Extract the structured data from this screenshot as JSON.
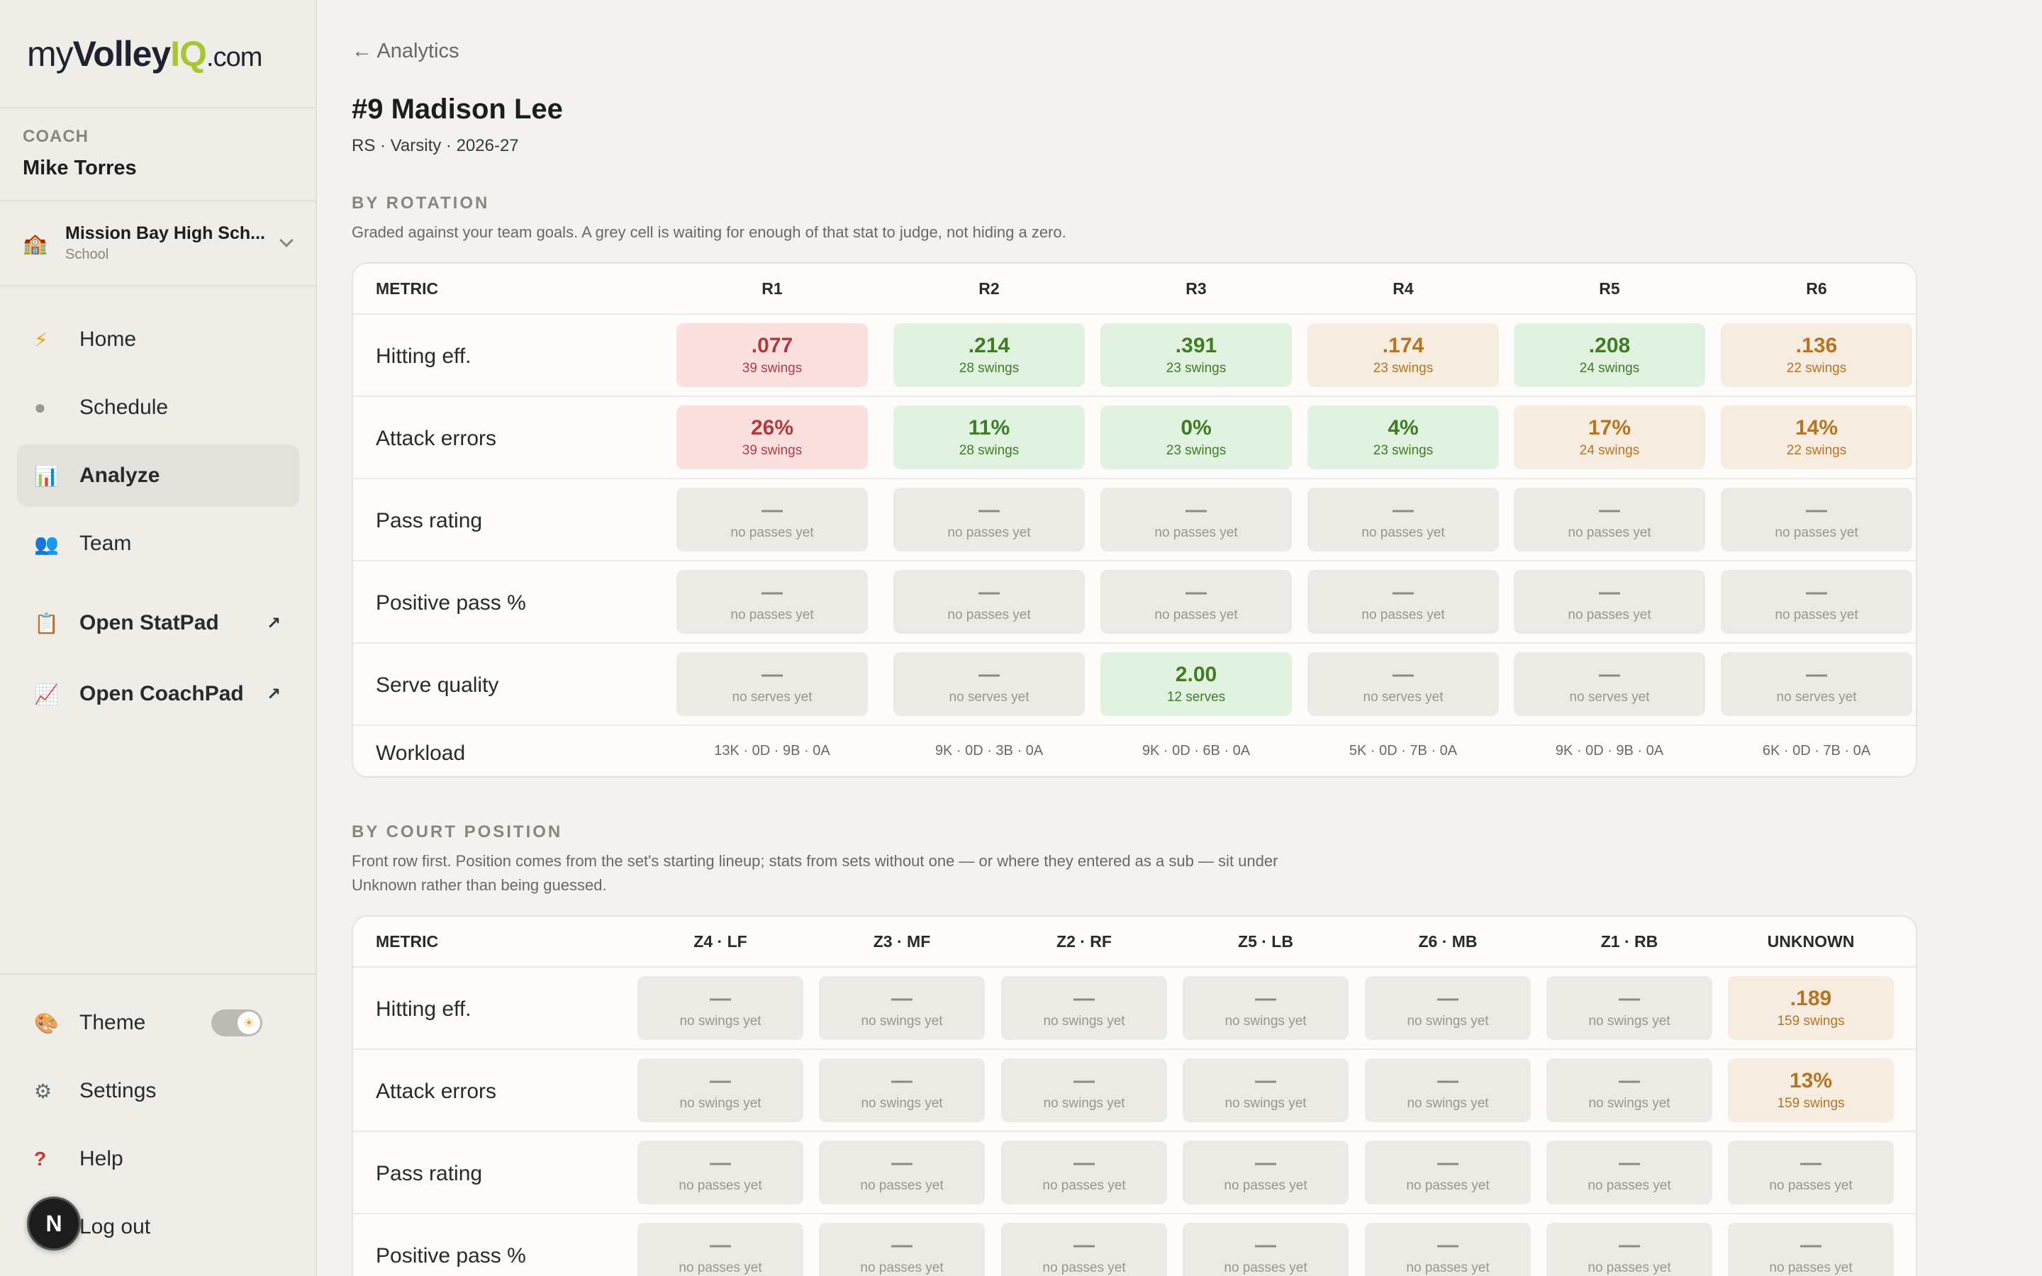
{
  "brand": {
    "prefix": "my",
    "bold": "Volley",
    "iq": "IQ",
    "suffix": ".com"
  },
  "coach": {
    "role": "COACH",
    "name": "Mike Torres"
  },
  "school": {
    "name": "Mission Bay High Sch...",
    "type": "School",
    "icon": "school-building-icon"
  },
  "nav": {
    "home": "Home",
    "schedule": "Schedule",
    "analyze": "Analyze",
    "team": "Team",
    "statpad": "Open StatPad",
    "coachpad": "Open CoachPad",
    "theme": "Theme",
    "settings": "Settings",
    "help": "Help",
    "logout": "Log out",
    "external_arrow": "↗"
  },
  "avatar": "N",
  "back": "← Analytics",
  "player": {
    "name": "#9 Madison Lee",
    "sub": "RS · Varsity · 2026-27"
  },
  "rotation": {
    "title": "BY ROTATION",
    "desc": "Graded against your team goals. A grey cell is waiting for enough of that stat to judge, not hiding a zero.",
    "metric_header": "METRIC",
    "columns": [
      "R1",
      "R2",
      "R3",
      "R4",
      "R5",
      "R6"
    ],
    "rows": [
      {
        "label": "Hitting eff.",
        "cells": [
          {
            "v": ".077",
            "s": "39 swings",
            "c": "red"
          },
          {
            "v": ".214",
            "s": "28 swings",
            "c": "green"
          },
          {
            "v": ".391",
            "s": "23 swings",
            "c": "green"
          },
          {
            "v": ".174",
            "s": "23 swings",
            "c": "amber"
          },
          {
            "v": ".208",
            "s": "24 swings",
            "c": "green"
          },
          {
            "v": ".136",
            "s": "22 swings",
            "c": "amber"
          }
        ]
      },
      {
        "label": "Attack errors",
        "cells": [
          {
            "v": "26%",
            "s": "39 swings",
            "c": "red"
          },
          {
            "v": "11%",
            "s": "28 swings",
            "c": "green"
          },
          {
            "v": "0%",
            "s": "23 swings",
            "c": "green"
          },
          {
            "v": "4%",
            "s": "23 swings",
            "c": "green"
          },
          {
            "v": "17%",
            "s": "24 swings",
            "c": "amber"
          },
          {
            "v": "14%",
            "s": "22 swings",
            "c": "amber"
          }
        ]
      },
      {
        "label": "Pass rating",
        "cells": [
          {
            "v": "—",
            "s": "no passes yet",
            "c": "grey"
          },
          {
            "v": "—",
            "s": "no passes yet",
            "c": "grey"
          },
          {
            "v": "—",
            "s": "no passes yet",
            "c": "grey"
          },
          {
            "v": "—",
            "s": "no passes yet",
            "c": "grey"
          },
          {
            "v": "—",
            "s": "no passes yet",
            "c": "grey"
          },
          {
            "v": "—",
            "s": "no passes yet",
            "c": "grey"
          }
        ]
      },
      {
        "label": "Positive pass %",
        "cells": [
          {
            "v": "—",
            "s": "no passes yet",
            "c": "grey"
          },
          {
            "v": "—",
            "s": "no passes yet",
            "c": "grey"
          },
          {
            "v": "—",
            "s": "no passes yet",
            "c": "grey"
          },
          {
            "v": "—",
            "s": "no passes yet",
            "c": "grey"
          },
          {
            "v": "—",
            "s": "no passes yet",
            "c": "grey"
          },
          {
            "v": "—",
            "s": "no passes yet",
            "c": "grey"
          }
        ]
      },
      {
        "label": "Serve quality",
        "cells": [
          {
            "v": "—",
            "s": "no serves yet",
            "c": "grey"
          },
          {
            "v": "—",
            "s": "no serves yet",
            "c": "grey"
          },
          {
            "v": "2.00",
            "s": "12 serves",
            "c": "green"
          },
          {
            "v": "—",
            "s": "no serves yet",
            "c": "grey"
          },
          {
            "v": "—",
            "s": "no serves yet",
            "c": "grey"
          },
          {
            "v": "—",
            "s": "no serves yet",
            "c": "grey"
          }
        ]
      }
    ],
    "workload": {
      "label": "Workload",
      "values": [
        "13K · 0D · 9B · 0A",
        "9K · 0D · 3B · 0A",
        "9K · 0D · 6B · 0A",
        "5K · 0D · 7B · 0A",
        "9K · 0D · 9B · 0A",
        "6K · 0D · 7B · 0A"
      ]
    }
  },
  "court": {
    "title": "BY COURT POSITION",
    "desc": "Front row first. Position comes from the set's starting lineup; stats from sets without one — or where they entered as a sub — sit under Unknown rather than being guessed.",
    "metric_header": "METRIC",
    "columns": [
      "Z4 · LF",
      "Z3 · MF",
      "Z2 · RF",
      "Z5 · LB",
      "Z6 · MB",
      "Z1 · RB",
      "UNKNOWN"
    ],
    "rows": [
      {
        "label": "Hitting eff.",
        "cells": [
          {
            "v": "—",
            "s": "no swings yet",
            "c": "grey"
          },
          {
            "v": "—",
            "s": "no swings yet",
            "c": "grey"
          },
          {
            "v": "—",
            "s": "no swings yet",
            "c": "grey"
          },
          {
            "v": "—",
            "s": "no swings yet",
            "c": "grey"
          },
          {
            "v": "—",
            "s": "no swings yet",
            "c": "grey"
          },
          {
            "v": "—",
            "s": "no swings yet",
            "c": "grey"
          },
          {
            "v": ".189",
            "s": "159 swings",
            "c": "amber"
          }
        ]
      },
      {
        "label": "Attack errors",
        "cells": [
          {
            "v": "—",
            "s": "no swings yet",
            "c": "grey"
          },
          {
            "v": "—",
            "s": "no swings yet",
            "c": "grey"
          },
          {
            "v": "—",
            "s": "no swings yet",
            "c": "grey"
          },
          {
            "v": "—",
            "s": "no swings yet",
            "c": "grey"
          },
          {
            "v": "—",
            "s": "no swings yet",
            "c": "grey"
          },
          {
            "v": "—",
            "s": "no swings yet",
            "c": "grey"
          },
          {
            "v": "13%",
            "s": "159 swings",
            "c": "amber"
          }
        ]
      },
      {
        "label": "Pass rating",
        "cells": [
          {
            "v": "—",
            "s": "no passes yet",
            "c": "grey"
          },
          {
            "v": "—",
            "s": "no passes yet",
            "c": "grey"
          },
          {
            "v": "—",
            "s": "no passes yet",
            "c": "grey"
          },
          {
            "v": "—",
            "s": "no passes yet",
            "c": "grey"
          },
          {
            "v": "—",
            "s": "no passes yet",
            "c": "grey"
          },
          {
            "v": "—",
            "s": "no passes yet",
            "c": "grey"
          },
          {
            "v": "—",
            "s": "no passes yet",
            "c": "grey"
          }
        ]
      },
      {
        "label": "Positive pass %",
        "cells": [
          {
            "v": "—",
            "s": "no passes yet",
            "c": "grey"
          },
          {
            "v": "—",
            "s": "no passes yet",
            "c": "grey"
          },
          {
            "v": "—",
            "s": "no passes yet",
            "c": "grey"
          },
          {
            "v": "—",
            "s": "no passes yet",
            "c": "grey"
          },
          {
            "v": "—",
            "s": "no passes yet",
            "c": "grey"
          },
          {
            "v": "—",
            "s": "no passes yet",
            "c": "grey"
          },
          {
            "v": "—",
            "s": "no passes yet",
            "c": "grey"
          }
        ]
      }
    ]
  }
}
